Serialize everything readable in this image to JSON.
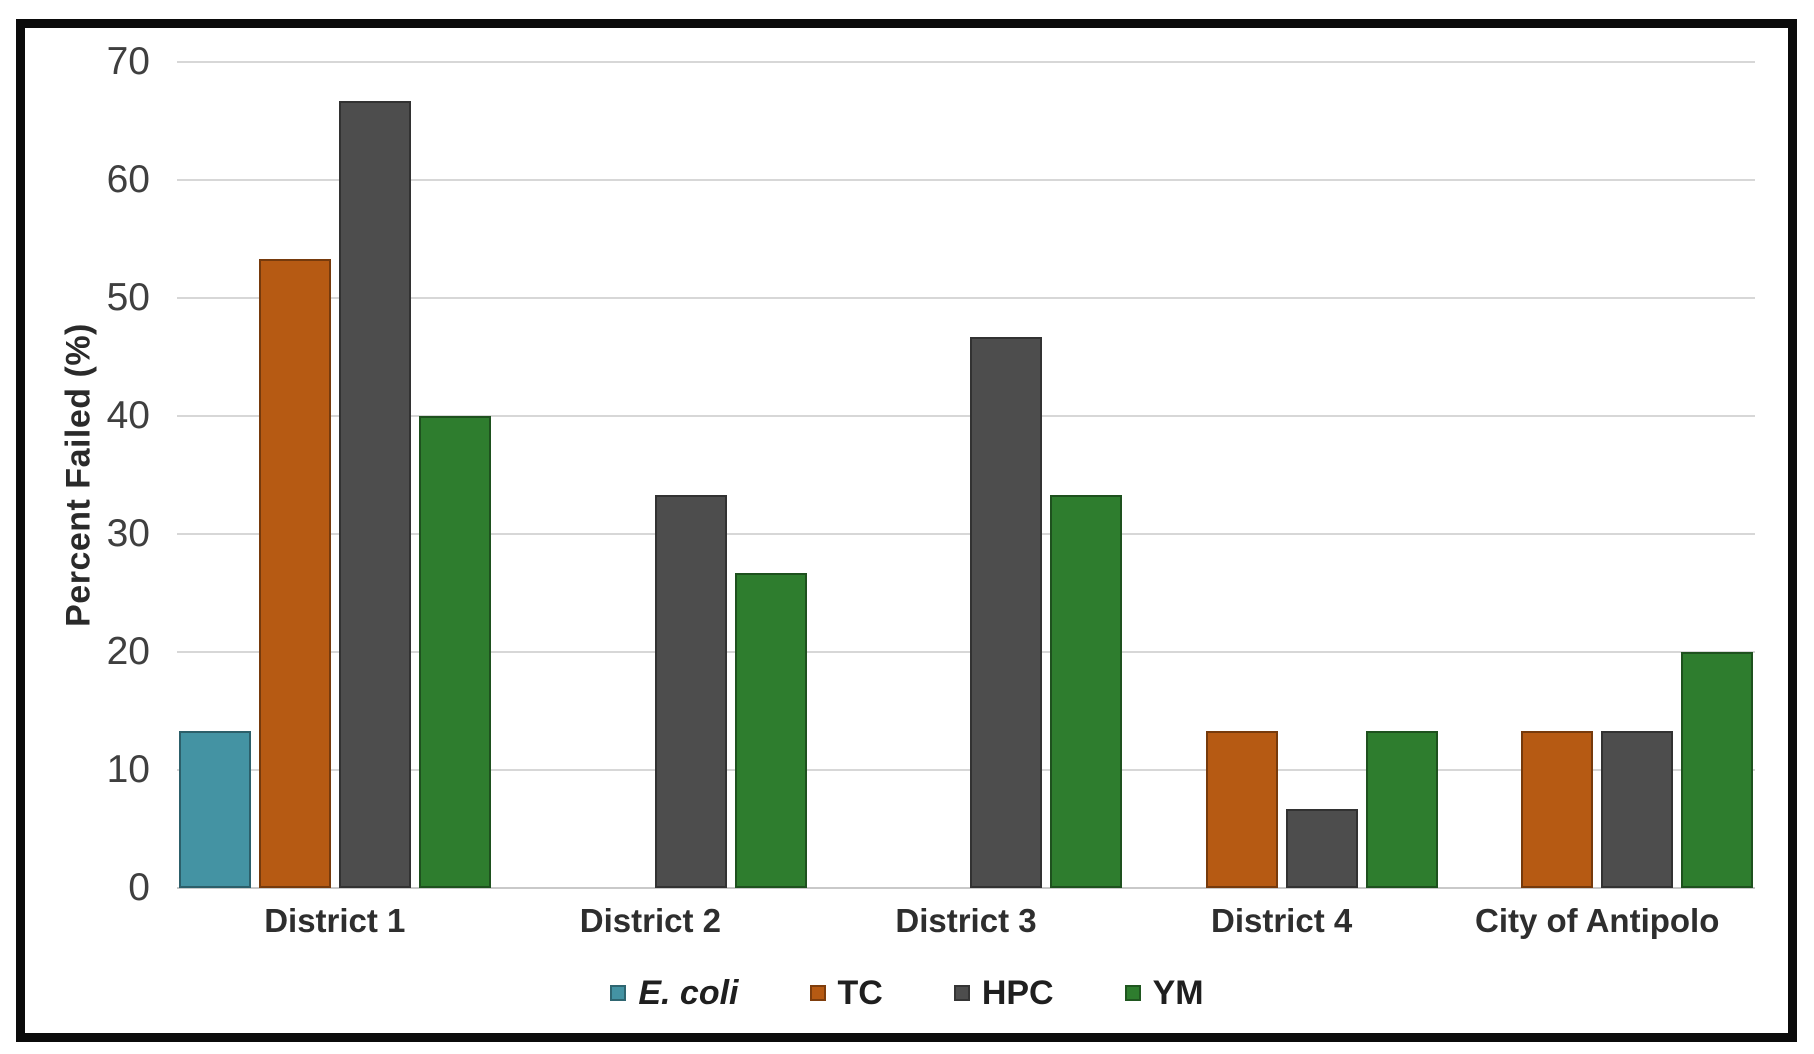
{
  "chart_data": {
    "type": "bar",
    "categories": [
      "District 1",
      "District 2",
      "District 3",
      "District 4",
      "City of Antipolo"
    ],
    "series": [
      {
        "name": "E. coli",
        "color": "#4493A3",
        "italic": true,
        "values": [
          13.3,
          0,
          0,
          0,
          0
        ]
      },
      {
        "name": "TC",
        "color": "#B65A13",
        "italic": false,
        "values": [
          53.3,
          0,
          0,
          13.3,
          13.3
        ]
      },
      {
        "name": "HPC",
        "color": "#4D4D4D",
        "italic": false,
        "values": [
          66.7,
          33.3,
          46.7,
          6.7,
          13.3
        ]
      },
      {
        "name": "YM",
        "color": "#2E7D2E",
        "italic": false,
        "values": [
          40,
          26.7,
          33.3,
          13.3,
          20
        ]
      }
    ],
    "title": "",
    "xlabel": "",
    "ylabel": "Percent Failed (%)",
    "ylim": [
      0,
      70
    ],
    "yticks": [
      0,
      10,
      20,
      30,
      40,
      50,
      60,
      70
    ],
    "grid": true,
    "legend_position": "bottom",
    "colors": {
      "gridline": "#d7d7d7",
      "axis_text": "#3f3f3f",
      "label_text": "#2e2e2e",
      "frame": "#0b0b0b",
      "background": "#ffffff"
    }
  }
}
